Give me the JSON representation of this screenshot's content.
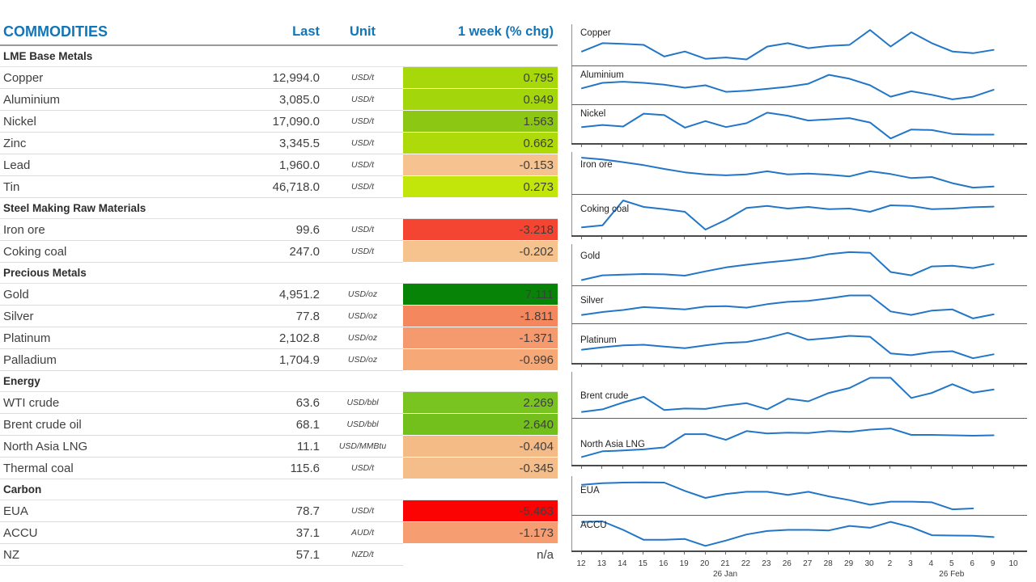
{
  "table": {
    "headers": {
      "name": "COMMODITIES",
      "last": "Last",
      "unit": "Unit",
      "change": "1 week (% chg)"
    },
    "sections": [
      {
        "label": "LME Base Metals",
        "rows": [
          {
            "name": "Copper",
            "last": "12,994.0",
            "unit": "USD/t",
            "change": "0.795",
            "change_bg": "#a7d80a"
          },
          {
            "name": "Aluminium",
            "last": "3,085.0",
            "unit": "USD/t",
            "change": "0.949",
            "change_bg": "#a3d60b"
          },
          {
            "name": "Nickel",
            "last": "17,090.0",
            "unit": "USD/t",
            "change": "1.563",
            "change_bg": "#8cc714"
          },
          {
            "name": "Zinc",
            "last": "3,345.5",
            "unit": "USD/t",
            "change": "0.662",
            "change_bg": "#aeda09"
          },
          {
            "name": "Lead",
            "last": "1,960.0",
            "unit": "USD/t",
            "change": "-0.153",
            "change_bg": "#f6c28f"
          },
          {
            "name": "Tin",
            "last": "46,718.0",
            "unit": "USD/t",
            "change": "0.273",
            "change_bg": "#c2e60a"
          }
        ]
      },
      {
        "label": "Steel Making Raw Materials",
        "rows": [
          {
            "name": "Iron ore",
            "last": "99.6",
            "unit": "USD/t",
            "change": "-3.218",
            "change_bg": "#f44532"
          },
          {
            "name": "Coking coal",
            "last": "247.0",
            "unit": "USD/t",
            "change": "-0.202",
            "change_bg": "#f6c38f"
          }
        ]
      },
      {
        "label": "Precious Metals",
        "rows": [
          {
            "name": "Gold",
            "last": "4,951.2",
            "unit": "USD/oz",
            "change": "7.111",
            "change_bg": "#078407"
          },
          {
            "name": "Silver",
            "last": "77.8",
            "unit": "USD/oz",
            "change": "-1.811",
            "change_bg": "#f5875e"
          },
          {
            "name": "Platinum",
            "last": "2,102.8",
            "unit": "USD/oz",
            "change": "-1.371",
            "change_bg": "#f59a6e"
          },
          {
            "name": "Palladium",
            "last": "1,704.9",
            "unit": "USD/oz",
            "change": "-0.996",
            "change_bg": "#f6a877"
          }
        ]
      },
      {
        "label": "Energy",
        "rows": [
          {
            "name": "WTI crude",
            "last": "63.6",
            "unit": "USD/bbl",
            "change": "2.269",
            "change_bg": "#79c421"
          },
          {
            "name": "Brent crude oil",
            "last": "68.1",
            "unit": "USD/bbl",
            "change": "2.640",
            "change_bg": "#73c01c"
          },
          {
            "name": "North Asia LNG",
            "last": "11.1",
            "unit": "USD/MMBtu",
            "change": "-0.404",
            "change_bg": "#f5bb87"
          },
          {
            "name": "Thermal coal",
            "last": "115.6",
            "unit": "USD/t",
            "change": "-0.345",
            "change_bg": "#f5bd8a"
          }
        ]
      },
      {
        "label": "Carbon",
        "rows": [
          {
            "name": "EUA",
            "last": "78.7",
            "unit": "USD/t",
            "change": "-5.463",
            "change_bg": "#fc0303"
          },
          {
            "name": "ACCU",
            "last": "37.1",
            "unit": "AUD/t",
            "change": "-1.173",
            "change_bg": "#f69e71"
          },
          {
            "name": "NZ",
            "last": "57.1",
            "unit": "NZD/t",
            "change": "n/a",
            "change_bg": null
          }
        ]
      }
    ]
  },
  "colors": {
    "accent_blue": "#1176b8",
    "sparkline_blue": "#2176c7"
  },
  "chart_data": {
    "type": "line",
    "note": "12 one-month sparklines; no y-axis shown, values normalized 0-1 within each band (1 = band top)",
    "x_tick_labels": [
      "12",
      "13",
      "14",
      "15",
      "16",
      "19",
      "20",
      "21",
      "22",
      "23",
      "26",
      "27",
      "28",
      "29",
      "30",
      "2",
      "3",
      "4",
      "5",
      "6",
      "9",
      "10"
    ],
    "month_labels": [
      {
        "label": "26 Jan",
        "tick_index": 7
      },
      {
        "label": "26 Feb",
        "tick_index": 18
      }
    ],
    "line_color": "#2176c7",
    "grid": false,
    "groups": [
      {
        "charts": [
          {
            "label": "Copper",
            "h": 51,
            "label_top": 0.1,
            "values": [
              0.3,
              0.55,
              0.53,
              0.5,
              0.15,
              0.3,
              0.08,
              0.12,
              0.06,
              0.45,
              0.55,
              0.4,
              0.47,
              0.5,
              0.95,
              0.45,
              0.88,
              0.55,
              0.3,
              0.25,
              0.35
            ]
          },
          {
            "label": "Aluminium",
            "h": 47,
            "label_top": 0.1,
            "values": [
              0.4,
              0.58,
              0.62,
              0.58,
              0.52,
              0.42,
              0.5,
              0.28,
              0.32,
              0.38,
              0.45,
              0.55,
              0.85,
              0.72,
              0.5,
              0.12,
              0.3,
              0.18,
              0.03,
              0.12,
              0.35
            ]
          },
          {
            "label": "Nickel",
            "h": 47,
            "label_top": 0.1,
            "values": [
              0.4,
              0.47,
              0.42,
              0.85,
              0.8,
              0.38,
              0.6,
              0.4,
              0.53,
              0.88,
              0.78,
              0.62,
              0.66,
              0.7,
              0.55,
              0.02,
              0.32,
              0.3,
              0.17,
              0.15,
              0.15
            ]
          }
        ]
      },
      {
        "charts": [
          {
            "label": "Iron ore",
            "h": 52,
            "label_top": 0.2,
            "values": [
              0.95,
              0.9,
              0.82,
              0.73,
              0.62,
              0.52,
              0.46,
              0.43,
              0.46,
              0.55,
              0.46,
              0.48,
              0.45,
              0.4,
              0.55,
              0.47,
              0.35,
              0.38,
              0.2,
              0.07,
              0.1
            ]
          },
          {
            "label": "Coking coal",
            "h": 50,
            "label_top": 0.24,
            "values": [
              0.12,
              0.18,
              0.95,
              0.75,
              0.68,
              0.6,
              0.05,
              0.35,
              0.72,
              0.78,
              0.7,
              0.75,
              0.68,
              0.7,
              0.6,
              0.8,
              0.78,
              0.68,
              0.7,
              0.74,
              0.76
            ]
          }
        ]
      },
      {
        "charts": [
          {
            "label": "Gold",
            "h": 51,
            "label_top": 0.18,
            "values": [
              0.04,
              0.18,
              0.2,
              0.22,
              0.21,
              0.17,
              0.3,
              0.42,
              0.5,
              0.57,
              0.63,
              0.7,
              0.82,
              0.88,
              0.86,
              0.28,
              0.18,
              0.45,
              0.47,
              0.4,
              0.52
            ]
          },
          {
            "label": "Silver",
            "h": 46,
            "label_top": 0.26,
            "values": [
              0.15,
              0.25,
              0.32,
              0.42,
              0.38,
              0.34,
              0.44,
              0.45,
              0.4,
              0.52,
              0.6,
              0.63,
              0.72,
              0.82,
              0.82,
              0.27,
              0.15,
              0.3,
              0.34,
              0.03,
              0.17
            ]
          },
          {
            "label": "Platinum",
            "h": 48,
            "label_top": 0.3,
            "values": [
              0.3,
              0.38,
              0.44,
              0.46,
              0.4,
              0.35,
              0.44,
              0.52,
              0.55,
              0.68,
              0.85,
              0.62,
              0.68,
              0.75,
              0.72,
              0.18,
              0.12,
              0.22,
              0.25,
              0.02,
              0.15
            ]
          }
        ]
      },
      {
        "charts": [
          {
            "label": "Brent crude",
            "h": 57,
            "label_top": 0.42,
            "values": [
              0.05,
              0.12,
              0.3,
              0.45,
              0.1,
              0.14,
              0.13,
              0.22,
              0.28,
              0.12,
              0.4,
              0.33,
              0.55,
              0.68,
              0.95,
              0.95,
              0.42,
              0.55,
              0.78,
              0.56,
              0.64
            ]
          },
          {
            "label": "North Asia LNG",
            "h": 57,
            "label_top": 0.46,
            "values": [
              0.1,
              0.25,
              0.27,
              0.3,
              0.35,
              0.7,
              0.7,
              0.55,
              0.78,
              0.72,
              0.74,
              0.73,
              0.78,
              0.76,
              0.82,
              0.85,
              0.68,
              0.68,
              0.67,
              0.66,
              0.67
            ]
          }
        ]
      },
      {
        "charts": [
          {
            "label": "EUA",
            "h": 48,
            "label_top": 0.26,
            "values": [
              0.85,
              0.9,
              0.92,
              0.93,
              0.92,
              0.65,
              0.42,
              0.55,
              0.62,
              0.62,
              0.52,
              0.62,
              0.47,
              0.35,
              0.2,
              0.3,
              0.3,
              0.28,
              0.05,
              0.08
            ]
          },
          {
            "label": "ACCU",
            "h": 43,
            "label_top": 0.14,
            "values": [
              0.92,
              0.94,
              0.62,
              0.25,
              0.25,
              0.28,
              0.02,
              0.22,
              0.45,
              0.58,
              0.62,
              0.62,
              0.6,
              0.77,
              0.7,
              0.92,
              0.72,
              0.42,
              0.41,
              0.4,
              0.35
            ]
          }
        ]
      }
    ]
  }
}
